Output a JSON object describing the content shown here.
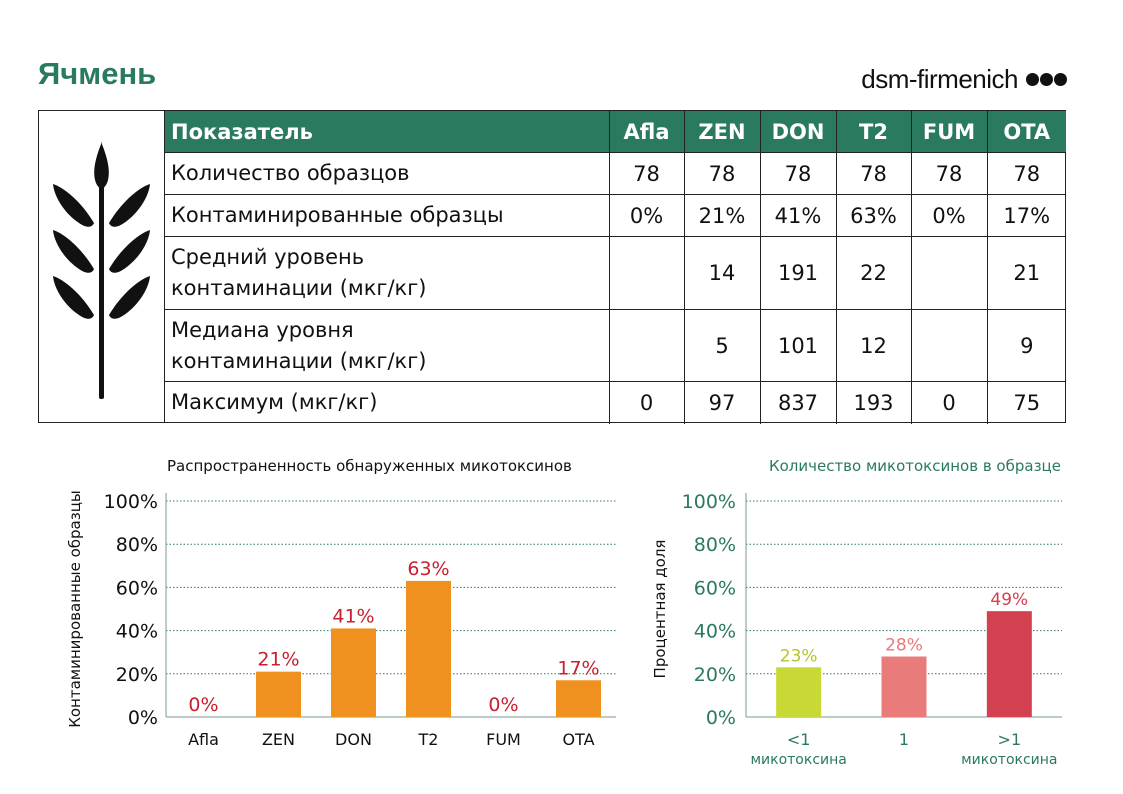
{
  "page": {
    "title": "Ячмень",
    "brand": "dsm-firmenich"
  },
  "table": {
    "columns": [
      "Показатель",
      "Afla",
      "ZEN",
      "DON",
      "T2",
      "FUM",
      "OTA"
    ],
    "rows": [
      {
        "label": [
          "Количество образцов"
        ],
        "values": [
          "78",
          "78",
          "78",
          "78",
          "78",
          "78"
        ]
      },
      {
        "label": [
          "Контаминированные образцы"
        ],
        "values": [
          "0%",
          "21%",
          "41%",
          "63%",
          "0%",
          "17%"
        ]
      },
      {
        "label": [
          "Средний уровень",
          "контаминации (мкг/кг)"
        ],
        "values": [
          "",
          "14",
          "191",
          "22",
          "",
          "21"
        ]
      },
      {
        "label": [
          "Медиана уровня",
          "контаминации (мкг/кг)"
        ],
        "values": [
          "",
          "5",
          "101",
          "12",
          "",
          "9"
        ]
      },
      {
        "label": [
          "Максимум (мкг/кг)"
        ],
        "values": [
          "0",
          "97",
          "837",
          "193",
          "0",
          "75"
        ]
      }
    ]
  },
  "chart_data": [
    {
      "type": "bar",
      "title": "Распространенность обнаруженных микотоксинов",
      "ylabel": "Контаминированные образцы",
      "xlabel": "",
      "categories": [
        "Afla",
        "ZEN",
        "DON",
        "T2",
        "FUM",
        "OTA"
      ],
      "values": [
        0,
        21,
        41,
        63,
        0,
        17
      ],
      "data_labels": [
        "0%",
        "21%",
        "41%",
        "63%",
        "0%",
        "17%"
      ],
      "ylim": [
        0,
        100
      ],
      "yticks": [
        "0%",
        "20%",
        "40%",
        "60%",
        "80%",
        "100%"
      ],
      "grid": true,
      "bar_color": "#f0901e",
      "label_color": "#c8202e"
    },
    {
      "type": "bar",
      "title": "Количество микотоксинов в образце",
      "ylabel": "Процентная доля",
      "xlabel": "",
      "categories": [
        [
          "<1",
          "микотоксина"
        ],
        [
          "1"
        ],
        [
          ">1",
          "микотоксина"
        ]
      ],
      "values": [
        23,
        28,
        49
      ],
      "data_labels": [
        "23%",
        "28%",
        "49%"
      ],
      "ylim": [
        0,
        100
      ],
      "yticks": [
        "0%",
        "20%",
        "40%",
        "60%",
        "80%",
        "100%"
      ],
      "grid": true,
      "bar_colors": [
        "#c8d936",
        "#ea7b7b",
        "#d3404f"
      ],
      "label_colors": [
        "#b6c42c",
        "#e77a7a",
        "#d3404f"
      ],
      "accent": "#2a7a5f"
    }
  ]
}
